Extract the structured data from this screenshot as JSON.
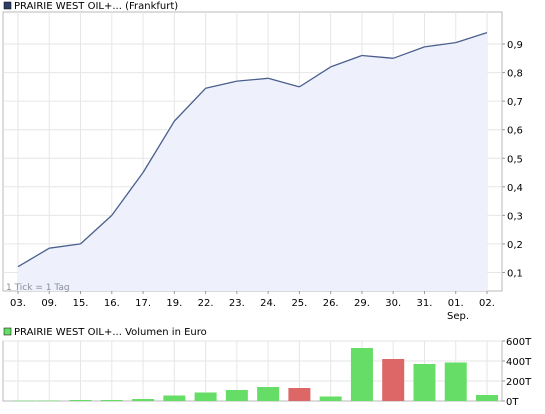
{
  "price_chart": {
    "legend_label": "PRAIRIE WEST OIL+... (Frankfurt)",
    "legend_color": "#2c3e66",
    "line_color": "#4a5f8e",
    "fill_color": "#eef1fb",
    "note": "1 Tick = 1 Tag",
    "month_label": "Sep.",
    "x_labels": [
      "03.",
      "09.",
      "15.",
      "16.",
      "17.",
      "19.",
      "22.",
      "23.",
      "24.",
      "25.",
      "26.",
      "29.",
      "30.",
      "31.",
      "01.",
      "02."
    ],
    "y_ticks": [
      "0,1",
      "0,2",
      "0,3",
      "0,4",
      "0,5",
      "0,6",
      "0,7",
      "0,8",
      "0,9"
    ]
  },
  "volume_chart": {
    "legend_label": "PRAIRIE WEST OIL+... Volumen in Euro",
    "legend_color": "#66dd66",
    "up_color": "#66dd66",
    "down_color": "#dd6666",
    "y_ticks": [
      "0T",
      "200T",
      "400T",
      "600T"
    ]
  },
  "chart_data": [
    {
      "type": "area",
      "title": "PRAIRIE WEST OIL+... (Frankfurt)",
      "x": [
        "03.",
        "09.",
        "15.",
        "16.",
        "17.",
        "19.",
        "22.",
        "23.",
        "24.",
        "25.",
        "26.",
        "29.",
        "30.",
        "31.",
        "01.",
        "02."
      ],
      "series": [
        {
          "name": "PRAIRIE WEST OIL+... (Frankfurt)",
          "values": [
            0.12,
            0.185,
            0.2,
            0.3,
            0.45,
            0.63,
            0.745,
            0.77,
            0.78,
            0.75,
            0.82,
            0.86,
            0.85,
            0.89,
            0.905,
            0.94
          ]
        }
      ],
      "ylim": [
        0,
        1.0
      ],
      "grid": true
    },
    {
      "type": "bar",
      "title": "PRAIRIE WEST OIL+... Volumen in Euro",
      "categories": [
        "03.",
        "09.",
        "15.",
        "16.",
        "17.",
        "19.",
        "22.",
        "23.",
        "24.",
        "25.",
        "26.",
        "29.",
        "30.",
        "31.",
        "01.",
        "02."
      ],
      "values": [
        3,
        5,
        10,
        10,
        20,
        55,
        85,
        110,
        140,
        130,
        45,
        530,
        420,
        370,
        385,
        60
      ],
      "direction": [
        "up",
        "up",
        "up",
        "up",
        "up",
        "up",
        "up",
        "up",
        "up",
        "down",
        "up",
        "up",
        "down",
        "up",
        "up",
        "up"
      ],
      "ylim": [
        0,
        600
      ],
      "grid": true
    }
  ]
}
